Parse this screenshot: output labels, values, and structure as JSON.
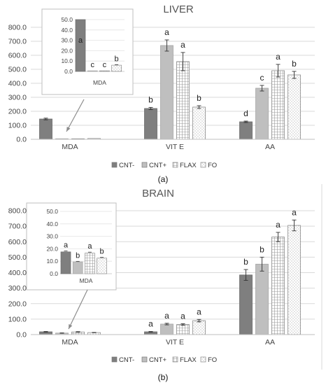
{
  "chart_data": [
    {
      "type": "bar",
      "panel_label": "(a)",
      "title": "LIVER",
      "categories": [
        "MDA",
        "VIT E",
        "AA"
      ],
      "ylim": [
        0,
        800
      ],
      "yticks": [
        "0.0",
        "100.0",
        "200.0",
        "300.0",
        "400.0",
        "500.0",
        "600.0",
        "700.0",
        "800.0"
      ],
      "grid": true,
      "legend_position": "bottom",
      "series": [
        {
          "name": "CNT-",
          "values": [
            145,
            220,
            125
          ],
          "errors": [
            6,
            8,
            5
          ],
          "letters": [
            "",
            "b",
            "d"
          ],
          "color": "#7f7f7f",
          "pattern": "solid"
        },
        {
          "name": "CNT+",
          "values": [
            3,
            670,
            365
          ],
          "errors": [
            0,
            40,
            20
          ],
          "letters": [
            "",
            "a",
            "c"
          ],
          "color": "#bfbfbf",
          "pattern": "solid"
        },
        {
          "name": "FLAX",
          "values": [
            3,
            555,
            490
          ],
          "errors": [
            0,
            65,
            45
          ],
          "letters": [
            "",
            "a",
            "a"
          ],
          "color": "#ffffff",
          "pattern": "grid"
        },
        {
          "name": "FO",
          "values": [
            6,
            230,
            460
          ],
          "errors": [
            0,
            10,
            25
          ],
          "letters": [
            "",
            "b",
            "b"
          ],
          "color": "#ffffff",
          "pattern": "dots"
        }
      ],
      "inset": {
        "category": "MDA",
        "ylim": [
          0,
          50
        ],
        "yticks": [
          "0.0",
          "10.0",
          "20.0",
          "30.0",
          "40.0",
          "50.0"
        ],
        "values": [
          50,
          0.6,
          0.6,
          6
        ],
        "errors": [
          0,
          0,
          0,
          0.5
        ],
        "letters": [
          "a",
          "c",
          "c",
          "b"
        ]
      }
    },
    {
      "type": "bar",
      "panel_label": "(b)",
      "title": "BRAIN",
      "categories": [
        "MDA",
        "VIT E",
        "AA"
      ],
      "ylim": [
        0,
        800
      ],
      "yticks": [
        "0.0",
        "100.0",
        "200.0",
        "300.0",
        "400.0",
        "500.0",
        "600.0",
        "700.0",
        "800.0"
      ],
      "grid": true,
      "legend_position": "bottom",
      "series": [
        {
          "name": "CNT-",
          "values": [
            18,
            18,
            385
          ],
          "errors": [
            2,
            2,
            35
          ],
          "letters": [
            "",
            "a",
            "b"
          ],
          "color": "#7f7f7f",
          "pattern": "solid"
        },
        {
          "name": "CNT+",
          "values": [
            10,
            68,
            455
          ],
          "errors": [
            1,
            5,
            45
          ],
          "letters": [
            "",
            "a",
            "b"
          ],
          "color": "#bfbfbf",
          "pattern": "solid"
        },
        {
          "name": "FLAX",
          "values": [
            17,
            65,
            630
          ],
          "errors": [
            2,
            5,
            30
          ],
          "letters": [
            "",
            "a",
            "a"
          ],
          "color": "#ffffff",
          "pattern": "grid"
        },
        {
          "name": "FO",
          "values": [
            13,
            90,
            705
          ],
          "errors": [
            1,
            8,
            35
          ],
          "letters": [
            "",
            "a",
            "a"
          ],
          "color": "#ffffff",
          "pattern": "dots"
        }
      ],
      "inset": {
        "category": "MDA",
        "ylim": [
          0,
          50
        ],
        "yticks": [
          "0.0",
          "10.0",
          "20.0",
          "30.0",
          "40.0",
          "50.0"
        ],
        "values": [
          17.5,
          9.5,
          16.5,
          12.5
        ],
        "errors": [
          0.8,
          0.4,
          0.8,
          0.6
        ],
        "letters": [
          "a",
          "b",
          "a",
          "b"
        ]
      }
    }
  ]
}
